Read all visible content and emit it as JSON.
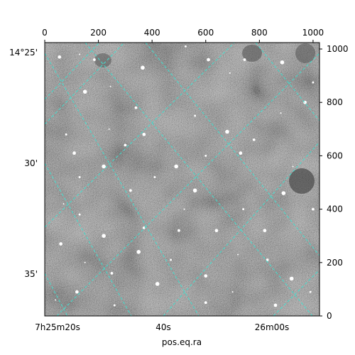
{
  "chart_data": {
    "type": "heatmap",
    "title": "",
    "xlabel": "pos.eq.ra",
    "ylabel": "",
    "pixel_axes": {
      "x_ticks": [
        0,
        200,
        400,
        600,
        800,
        1000
      ],
      "y_ticks": [
        0,
        200,
        400,
        600,
        800,
        1000
      ],
      "x_range": [
        0,
        1024
      ],
      "y_range": [
        0,
        1024
      ]
    },
    "world_axes": {
      "ra_labels": [
        "7h25m20s",
        "40s",
        "26m00s"
      ],
      "dec_labels": [
        "14°25'",
        "30'",
        "35'"
      ]
    },
    "grid": true,
    "grid_color": "#40e0d0",
    "image_colormap": "gray",
    "stars": [
      [
        130,
        980
      ],
      [
        185,
        960
      ],
      [
        150,
        840
      ],
      [
        80,
        680
      ],
      [
        55,
        970
      ],
      [
        245,
        860
      ],
      [
        340,
        780
      ],
      [
        365,
        930
      ],
      [
        525,
        1010
      ],
      [
        610,
        960
      ],
      [
        690,
        910
      ],
      [
        745,
        960
      ],
      [
        885,
        950
      ],
      [
        1000,
        875
      ],
      [
        970,
        800
      ],
      [
        880,
        760
      ],
      [
        780,
        660
      ],
      [
        680,
        690
      ],
      [
        560,
        750
      ],
      [
        370,
        680
      ],
      [
        240,
        700
      ],
      [
        300,
        640
      ],
      [
        220,
        560
      ],
      [
        130,
        520
      ],
      [
        110,
        610
      ],
      [
        70,
        420
      ],
      [
        320,
        470
      ],
      [
        490,
        560
      ],
      [
        600,
        600
      ],
      [
        730,
        610
      ],
      [
        925,
        560
      ],
      [
        1000,
        400
      ],
      [
        890,
        460
      ],
      [
        740,
        400
      ],
      [
        640,
        320
      ],
      [
        520,
        400
      ],
      [
        370,
        330
      ],
      [
        220,
        300
      ],
      [
        130,
        380
      ],
      [
        60,
        270
      ],
      [
        150,
        200
      ],
      [
        250,
        160
      ],
      [
        350,
        240
      ],
      [
        470,
        210
      ],
      [
        600,
        150
      ],
      [
        720,
        230
      ],
      [
        830,
        210
      ],
      [
        920,
        140
      ],
      [
        990,
        90
      ],
      [
        860,
        40
      ],
      [
        700,
        90
      ],
      [
        600,
        50
      ],
      [
        420,
        120
      ],
      [
        260,
        40
      ],
      [
        120,
        90
      ],
      [
        40,
        60
      ],
      [
        500,
        320
      ],
      [
        560,
        470
      ],
      [
        410,
        520
      ],
      [
        820,
        320
      ]
    ]
  }
}
